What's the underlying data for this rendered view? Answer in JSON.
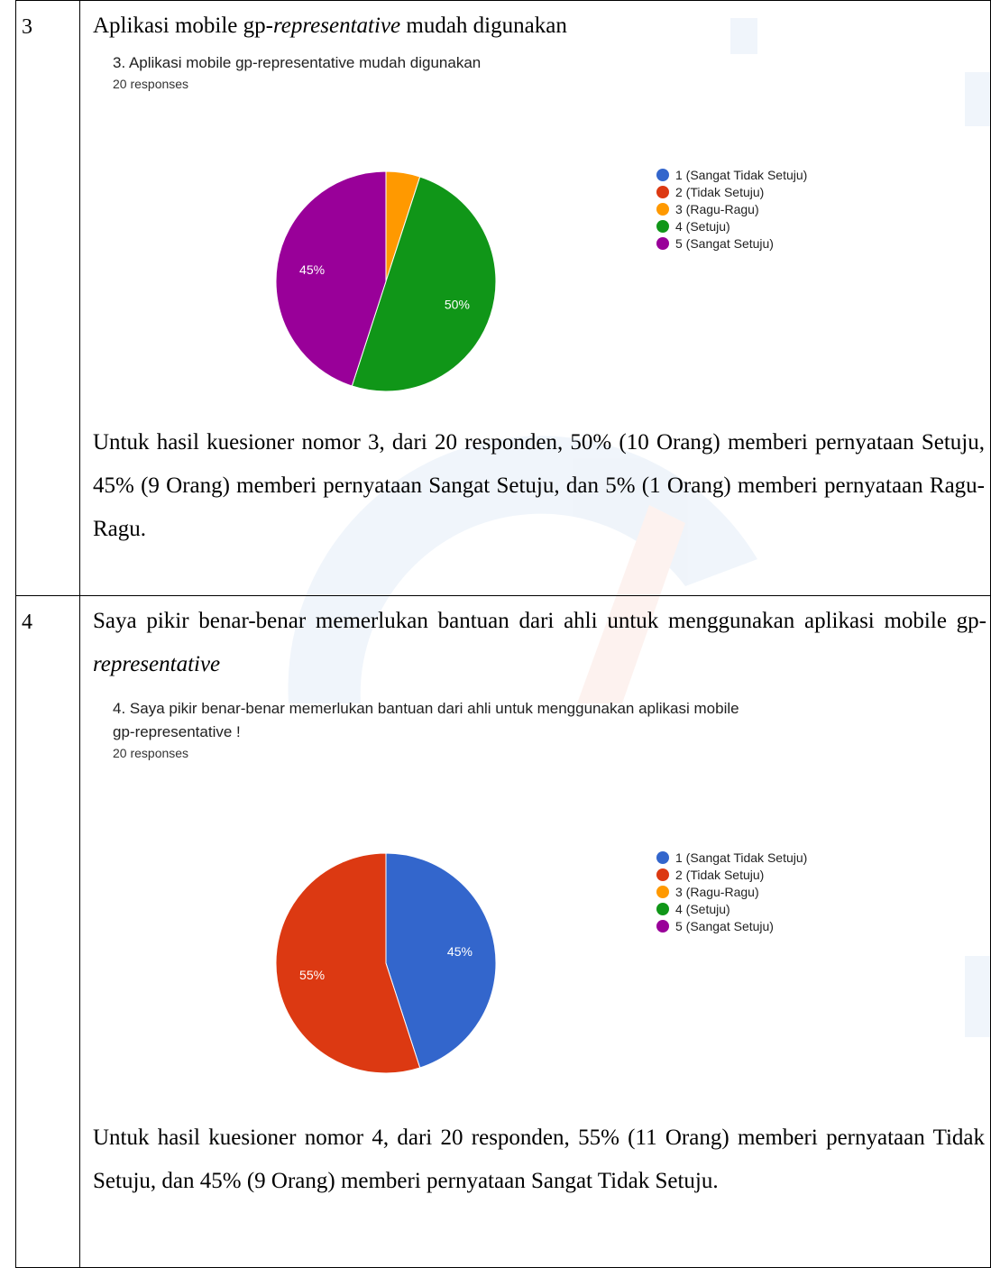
{
  "rows": [
    {
      "number": "3",
      "statement_plain": "Aplikasi mobile gp-",
      "statement_italic": "representative",
      "statement_tail": " mudah digunakan",
      "result": "Untuk hasil kuesioner nomor 3, dari 20 responden, 50% (10 Orang) memberi pernyataan Setuju, 45% (9 Orang) memberi pernyataan Sangat Setuju, dan 5% (1 Orang) memberi pernyataan Ragu-Ragu."
    },
    {
      "number": "4",
      "statement_plain": "Saya pikir benar-benar memerlukan bantuan dari ahli untuk menggunakan aplikasi mobile gp-",
      "statement_italic": "representative",
      "statement_tail": "",
      "result": "Untuk hasil kuesioner nomor 4, dari 20 responden, 55% (11 Orang) memberi pernyataan Tidak Setuju, dan 45% (9 Orang) memberi pernyataan Sangat Tidak Setuju."
    }
  ],
  "colors": {
    "1": "#3366cc",
    "2": "#dc3912",
    "3": "#ff9900",
    "4": "#109618",
    "5": "#990099"
  },
  "chart_data": [
    {
      "type": "pie",
      "title": "3. Aplikasi mobile gp-representative mudah digunakan",
      "subtitle": "20 responses",
      "categories": [
        "1 (Sangat Tidak Setuju)",
        "2 (Tidak Setuju)",
        "3 (Ragu-Ragu)",
        "4 (Setuju)",
        "5 (Sangat Setuju)"
      ],
      "values": [
        0,
        0,
        1,
        10,
        9
      ],
      "slice_labels": [
        "",
        "",
        "",
        "50%",
        "45%"
      ],
      "legend_position": "right"
    },
    {
      "type": "pie",
      "title": "4. Saya pikir benar-benar memerlukan bantuan dari ahli untuk menggunakan aplikasi mobile gp-representative !",
      "subtitle": "20 responses",
      "categories": [
        "1 (Sangat Tidak Setuju)",
        "2 (Tidak Setuju)",
        "3 (Ragu-Ragu)",
        "4 (Setuju)",
        "5 (Sangat Setuju)"
      ],
      "values": [
        9,
        11,
        0,
        0,
        0
      ],
      "slice_labels": [
        "45%",
        "55%",
        "",
        "",
        ""
      ],
      "legend_position": "right"
    }
  ]
}
